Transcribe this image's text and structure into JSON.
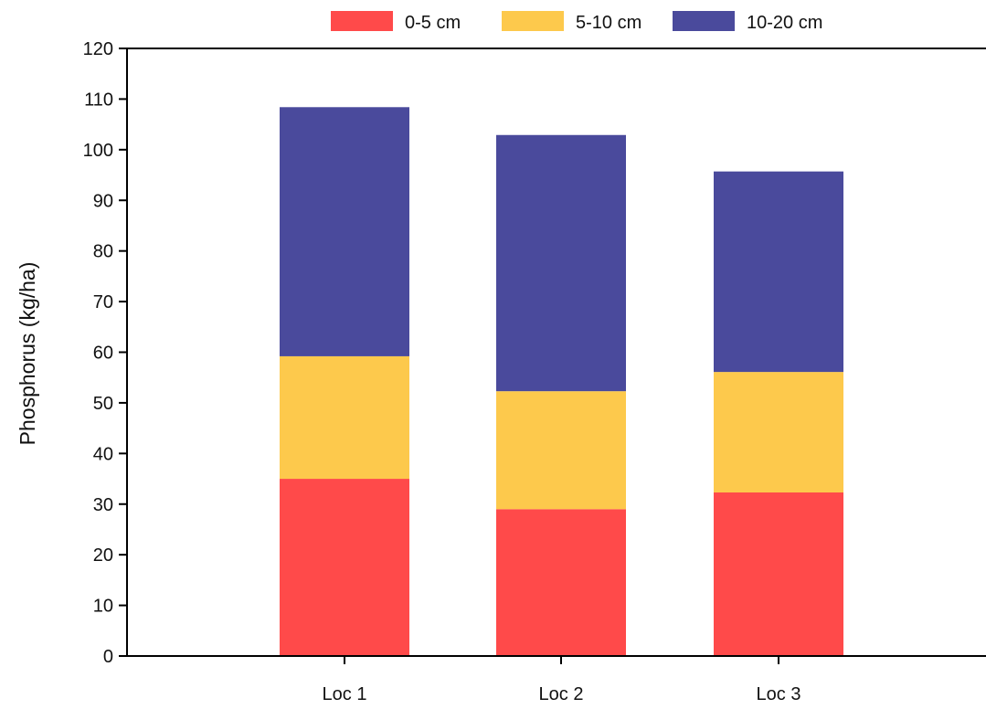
{
  "chart_data": {
    "type": "bar",
    "stacked": true,
    "categories": [
      "Loc 1",
      "Loc 2",
      "Loc 3"
    ],
    "series": [
      {
        "name": "0-5 cm",
        "color": "#ff4a4a",
        "values": [
          35,
          29,
          32.3
        ]
      },
      {
        "name": "5-10 cm",
        "color": "#fdc94c",
        "values": [
          24.2,
          23.3,
          23.8
        ]
      },
      {
        "name": "10-20 cm",
        "color": "#4a4a9c",
        "values": [
          49.2,
          50.6,
          39.6
        ]
      }
    ],
    "ylabel": "Phosphorus (kg/ha)",
    "ylim": [
      0,
      120
    ],
    "yticks": [
      "0",
      "10",
      "20",
      "30",
      "40",
      "50",
      "60",
      "70",
      "80",
      "90",
      "100",
      "110",
      "120"
    ],
    "grid": false,
    "legend_position": "top"
  }
}
